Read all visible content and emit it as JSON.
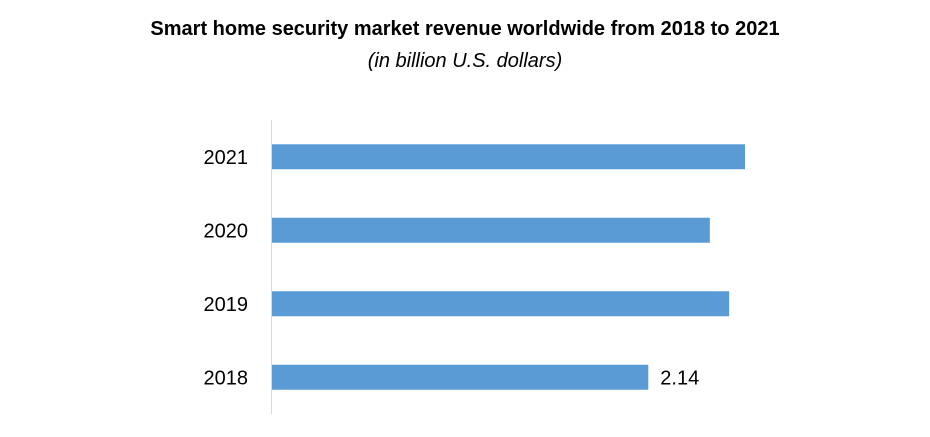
{
  "chart_data": {
    "type": "bar",
    "orientation": "horizontal",
    "title": "Smart home security market revenue worldwide from 2018 to 2021",
    "subtitle": "(in billion U.S. dollars)",
    "categories": [
      "2018",
      "2019",
      "2020",
      "2021"
    ],
    "values": [
      2.14,
      2.6,
      2.49,
      2.69
    ],
    "data_labels": [
      {
        "category": "2018",
        "text": "2.14"
      }
    ],
    "xlabel": "",
    "ylabel": "",
    "xlim": [
      0,
      2.69
    ],
    "grid": false,
    "legend": "none",
    "bar_color": "#5b9bd5",
    "axis_color": "#d9d9d9"
  }
}
